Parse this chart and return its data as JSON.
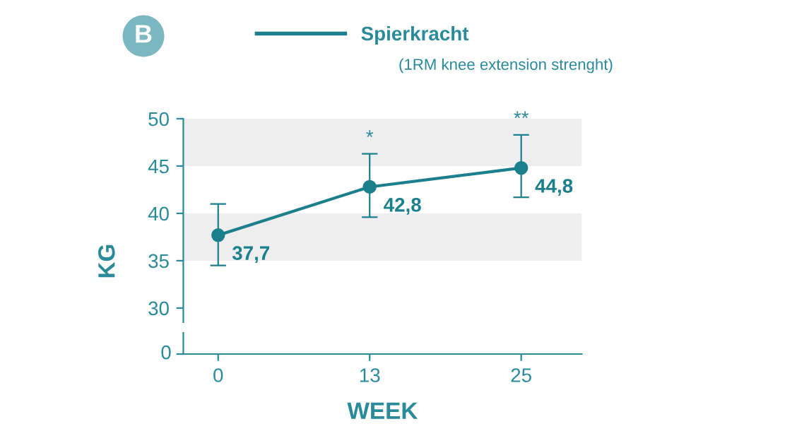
{
  "chart_data": {
    "type": "line",
    "title": "B",
    "ylabel": "KG",
    "xlabel": "WEEK",
    "categories": [
      "0",
      "13",
      "25"
    ],
    "series": [
      {
        "name": "Spierkracht",
        "color": "#1b7f8c",
        "values": [
          37.7,
          42.8,
          44.8
        ],
        "errors": [
          [
            34.5,
            41.0
          ],
          [
            39.6,
            46.3
          ],
          [
            41.7,
            48.3
          ]
        ],
        "value_labels": [
          "37,7",
          "42,8",
          "44,8"
        ]
      }
    ],
    "annotations": [
      "(1RM knee extension strenght)",
      "0",
      {
        "text": "*",
        "x": "13",
        "y": 46.3
      },
      {
        "text": "**",
        "x": "25",
        "y": 48.3
      }
    ],
    "bands": [
      {
        "axis": "y",
        "from": 45,
        "to": 50,
        "color": "#eeeeee"
      },
      {
        "axis": "y",
        "from": 35,
        "to": 40,
        "color": "#eeeeee"
      }
    ],
    "ylim": [
      28.5,
      50
    ],
    "yticks": [
      30,
      35,
      40,
      45,
      50
    ],
    "marker": "circle",
    "legend": "top",
    "grid": false
  }
}
